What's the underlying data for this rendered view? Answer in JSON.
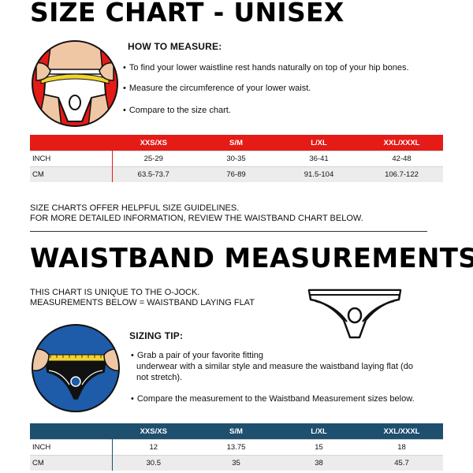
{
  "size_section": {
    "title": "SIZE CHART - UNISEX",
    "how_to_heading": "HOW TO MEASURE:",
    "bullets": [
      "To find your lower waistline rest hands naturally on top of your hip bones.",
      "Measure the circumference of your lower waist.",
      "Compare to the size chart."
    ],
    "table": {
      "headers": [
        "",
        "XXS/XS",
        "S/M",
        "L/XL",
        "XXL/XXXL"
      ],
      "rows": [
        [
          "INCH",
          "25-29",
          "30-35",
          "36-41",
          "42-48"
        ],
        [
          "CM",
          "63.5-73.7",
          "76-89",
          "91.5-104",
          "106.7-122"
        ]
      ]
    },
    "note_line1": "SIZE CHARTS OFFER HELPFUL SIZE GUIDELINES.",
    "note_line2": "FOR MORE DETAILED INFORMATION, REVIEW THE WAISTBAND CHART BELOW."
  },
  "waistband_section": {
    "title": "WAISTBAND MEASUREMENTS",
    "intro_line1": "THIS CHART IS UNIQUE TO THE O-JOCK.",
    "intro_line2": "MEASUREMENTS BELOW = WAISTBAND LAYING FLAT",
    "tip_heading": "SIZING TIP:",
    "tip_bullet1_line1": "Grab a pair of your favorite fitting",
    "tip_bullet1_line2": "underwear with a similar style and measure the waistband laying flat (do",
    "tip_bullet1_line3": "not stretch).",
    "tip_bullet2": "Compare the measurement to the Waistband Measurement sizes below.",
    "table": {
      "headers": [
        "",
        "XXS/XS",
        "S/M",
        "L/XL",
        "XXL/XXXL"
      ],
      "rows": [
        [
          "INCH",
          "12",
          "13.75",
          "15",
          "18"
        ],
        [
          "CM",
          "30.5",
          "35",
          "38",
          "45.7"
        ]
      ]
    }
  },
  "colors": {
    "accent_red": "#e41b17",
    "accent_navy": "#1f4f6f",
    "circle_blue": "#1e5ba8",
    "tape_yellow": "#f2d22e"
  },
  "icons": {
    "measure_waist": "person-waist-measuring-illustration",
    "measure_flat": "hands-measuring-waistband-illustration",
    "product": "o-jock-underwear-outline-illustration"
  }
}
